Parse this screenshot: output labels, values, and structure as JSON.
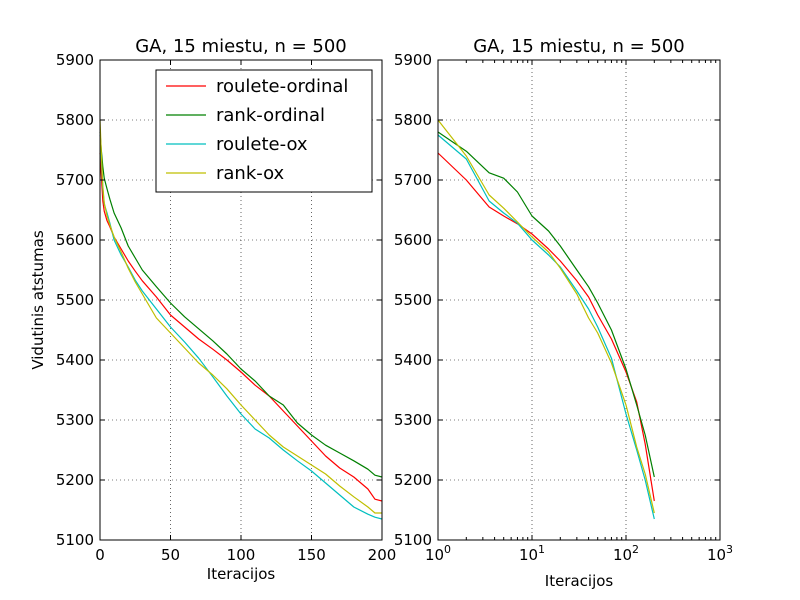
{
  "chart_data": [
    {
      "type": "line",
      "title": "GA, 15 miestu, n = 500",
      "xlabel": "Iteracijos",
      "ylabel": "Vidutinis atstumas",
      "xscale": "linear",
      "xlim": [
        0,
        200
      ],
      "ylim": [
        5100,
        5900
      ],
      "xticks": [
        0,
        50,
        100,
        150,
        200
      ],
      "xtick_labels": [
        "0",
        "50",
        "100",
        "150",
        "200"
      ],
      "yticks": [
        5100,
        5200,
        5300,
        5400,
        5500,
        5600,
        5700,
        5800,
        5900
      ],
      "ytick_labels": [
        "5100",
        "5200",
        "5300",
        "5400",
        "5500",
        "5600",
        "5700",
        "5800",
        "5900"
      ],
      "grid": true,
      "legend": "upper-right",
      "series": [
        {
          "name": "roulete-ordinal",
          "color": "#ff0000",
          "x": [
            0,
            1,
            2,
            3,
            5,
            7,
            10,
            15,
            20,
            25,
            30,
            40,
            50,
            60,
            70,
            80,
            90,
            100,
            110,
            120,
            130,
            140,
            150,
            160,
            170,
            180,
            190,
            195,
            200
          ],
          "y": [
            5745,
            5705,
            5665,
            5648,
            5632,
            5622,
            5605,
            5585,
            5565,
            5548,
            5532,
            5505,
            5475,
            5455,
            5435,
            5418,
            5400,
            5380,
            5358,
            5340,
            5315,
            5290,
            5265,
            5240,
            5220,
            5205,
            5185,
            5168,
            5165
          ]
        },
        {
          "name": "rank-ordinal",
          "color": "#008000",
          "x": [
            0,
            1,
            2,
            3,
            5,
            7,
            10,
            15,
            20,
            25,
            30,
            40,
            50,
            60,
            70,
            80,
            90,
            100,
            110,
            120,
            130,
            140,
            150,
            160,
            170,
            180,
            190,
            195,
            200
          ],
          "y": [
            5780,
            5748,
            5722,
            5703,
            5685,
            5668,
            5645,
            5620,
            5590,
            5570,
            5550,
            5522,
            5495,
            5472,
            5452,
            5432,
            5410,
            5385,
            5365,
            5340,
            5325,
            5295,
            5275,
            5258,
            5245,
            5232,
            5218,
            5208,
            5205
          ]
        },
        {
          "name": "roulete-ox",
          "color": "#00bfbf",
          "x": [
            0,
            1,
            2,
            3,
            5,
            7,
            10,
            15,
            20,
            25,
            30,
            40,
            50,
            60,
            70,
            80,
            90,
            100,
            110,
            120,
            130,
            140,
            150,
            160,
            170,
            180,
            190,
            195,
            200
          ],
          "y": [
            5775,
            5730,
            5685,
            5660,
            5645,
            5628,
            5600,
            5575,
            5555,
            5533,
            5515,
            5485,
            5455,
            5430,
            5403,
            5372,
            5340,
            5310,
            5285,
            5270,
            5250,
            5232,
            5215,
            5195,
            5175,
            5155,
            5143,
            5138,
            5135
          ]
        },
        {
          "name": "rank-ox",
          "color": "#bfbf00",
          "x": [
            0,
            1,
            2,
            3,
            5,
            7,
            10,
            15,
            20,
            25,
            30,
            40,
            50,
            60,
            70,
            80,
            90,
            100,
            110,
            120,
            130,
            140,
            150,
            160,
            170,
            180,
            190,
            195,
            200
          ],
          "y": [
            5800,
            5740,
            5690,
            5662,
            5640,
            5625,
            5605,
            5580,
            5553,
            5530,
            5510,
            5470,
            5445,
            5420,
            5395,
            5375,
            5352,
            5325,
            5300,
            5275,
            5255,
            5240,
            5225,
            5210,
            5190,
            5172,
            5155,
            5145,
            5145
          ]
        }
      ]
    },
    {
      "type": "line",
      "title": "GA, 15 miestu, n = 500",
      "xlabel": "Iteracijos",
      "ylabel": "",
      "xscale": "log",
      "xlim": [
        1,
        1000
      ],
      "ylim": [
        5100,
        5900
      ],
      "xticks": [
        1,
        10,
        100,
        1000
      ],
      "xtick_labels": [
        "0",
        "1",
        "2",
        "3"
      ],
      "xtick_base": "10",
      "yticks": [
        5100,
        5200,
        5300,
        5400,
        5500,
        5600,
        5700,
        5800,
        5900
      ],
      "ytick_labels": [
        "5100",
        "5200",
        "5300",
        "5400",
        "5500",
        "5600",
        "5700",
        "5800",
        "5900"
      ],
      "grid": true,
      "series": [
        {
          "name": "roulete-ordinal",
          "color": "#ff0000",
          "x": [
            1,
            2,
            3.5,
            5,
            7,
            10,
            15,
            20,
            30,
            40,
            50,
            70,
            100,
            130,
            160,
            200
          ],
          "y": [
            5745,
            5700,
            5655,
            5640,
            5627,
            5610,
            5585,
            5565,
            5532,
            5505,
            5475,
            5435,
            5380,
            5330,
            5260,
            5165
          ]
        },
        {
          "name": "rank-ordinal",
          "color": "#008000",
          "x": [
            1,
            2,
            3.5,
            5,
            7,
            10,
            15,
            20,
            30,
            40,
            50,
            70,
            100,
            130,
            160,
            200
          ],
          "y": [
            5780,
            5748,
            5712,
            5703,
            5680,
            5640,
            5615,
            5590,
            5550,
            5522,
            5495,
            5450,
            5385,
            5325,
            5275,
            5205
          ]
        },
        {
          "name": "roulete-ox",
          "color": "#00bfbf",
          "x": [
            1,
            2,
            3.5,
            5,
            7,
            10,
            15,
            20,
            30,
            40,
            50,
            70,
            100,
            130,
            160,
            200
          ],
          "y": [
            5775,
            5735,
            5665,
            5645,
            5628,
            5600,
            5575,
            5555,
            5515,
            5485,
            5455,
            5403,
            5310,
            5250,
            5200,
            5135
          ]
        },
        {
          "name": "rank-ox",
          "color": "#bfbf00",
          "x": [
            1,
            2,
            3.5,
            5,
            7,
            10,
            15,
            20,
            30,
            40,
            50,
            70,
            100,
            130,
            160,
            200
          ],
          "y": [
            5800,
            5740,
            5675,
            5653,
            5630,
            5605,
            5580,
            5553,
            5510,
            5470,
            5445,
            5395,
            5325,
            5255,
            5210,
            5145
          ]
        }
      ]
    }
  ]
}
